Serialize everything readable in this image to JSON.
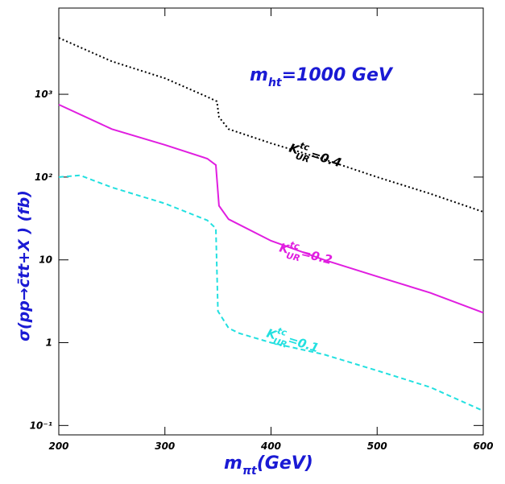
{
  "chart_data": {
    "type": "line",
    "title": {
      "main": "m",
      "sub": "ht",
      "rest": "=1000 GeV"
    },
    "xlabel": {
      "main": "m",
      "sub": "πt",
      "rest": "(GeV)"
    },
    "ylabel": "σ(pp→c̄tt+X ) (fb)",
    "log_y": true,
    "xlim": [
      200,
      600
    ],
    "ylim": [
      0.077,
      11000
    ],
    "xticks": [
      200,
      300,
      400,
      500,
      600
    ],
    "yticks": [
      {
        "value": 0.1,
        "label": "10⁻¹"
      },
      1,
      10,
      {
        "value": 100,
        "label": "10²"
      },
      {
        "value": 1000,
        "label": "10³"
      }
    ],
    "series": [
      {
        "label": {
          "main": "K",
          "sup": "tc",
          "sub": "UR",
          "rest": "=0.4"
        },
        "color": "#000000",
        "dash": "2,3",
        "x": [
          200,
          250,
          300,
          340,
          349,
          351,
          360,
          400,
          450,
          500,
          550,
          600
        ],
        "values": [
          4800,
          2500,
          1560,
          930,
          820,
          530,
          380,
          256,
          164,
          100,
          63,
          38
        ]
      },
      {
        "label": {
          "main": "K",
          "sup": "tc",
          "sub": "UR",
          "rest": "=0.2"
        },
        "color": "#e01ee0",
        "dash": "none",
        "x": [
          200,
          250,
          300,
          340,
          348,
          351,
          360,
          400,
          450,
          500,
          550,
          600
        ],
        "values": [
          750,
          380,
          245,
          167,
          140,
          45,
          31,
          17,
          10,
          6.3,
          4,
          2.3
        ]
      },
      {
        "label": {
          "main": "K",
          "sup": "tc",
          "sub": "UR",
          "rest": "=0.1"
        },
        "color": "#22e0e0",
        "dash": "6,4",
        "x": [
          200,
          220,
          250,
          300,
          340,
          348,
          350,
          360,
          370,
          400,
          450,
          500,
          550,
          600
        ],
        "values": [
          100,
          105,
          75,
          48,
          30,
          24,
          2.4,
          1.5,
          1.3,
          1.0,
          0.72,
          0.46,
          0.29,
          0.15
        ]
      }
    ]
  }
}
